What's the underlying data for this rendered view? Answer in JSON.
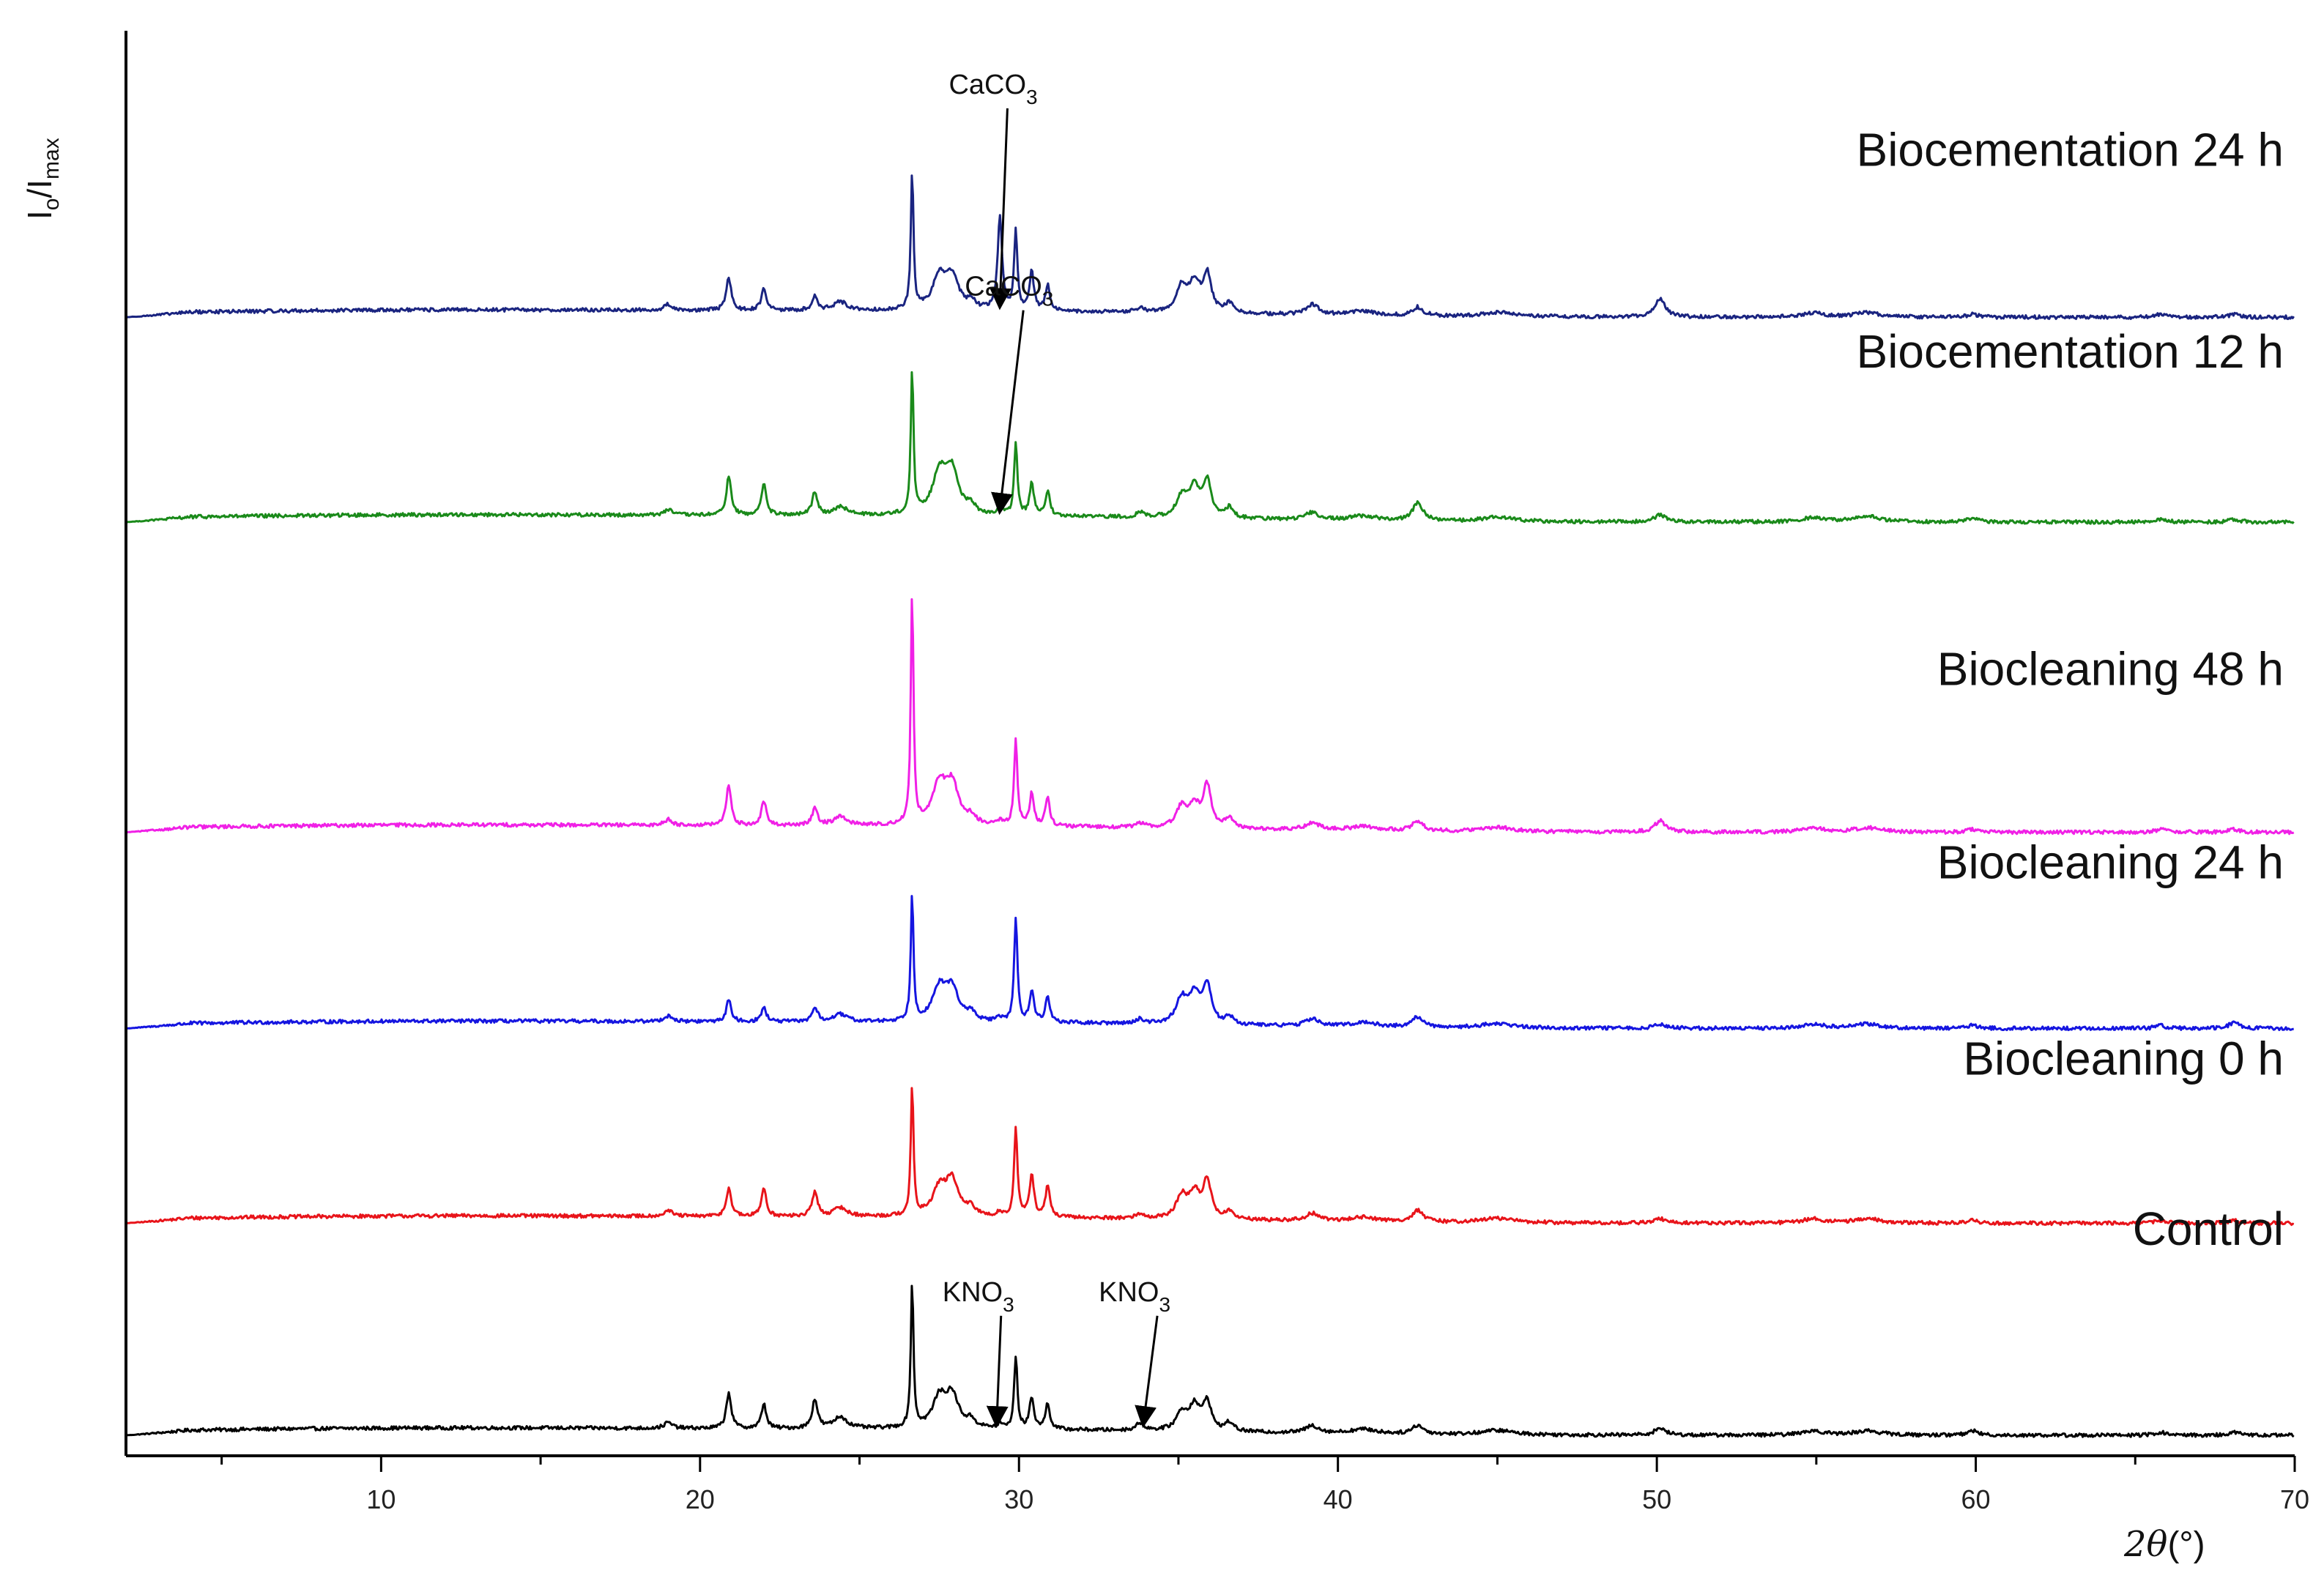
{
  "chart_data": {
    "type": "line",
    "ylabel_main": "I",
    "ylabel_sub1": "o",
    "ylabel_mid": "/I",
    "ylabel_sub2": "max",
    "xlabel_main": "2θ",
    "xlabel_unit": "(°)",
    "xlim": [
      2,
      70
    ],
    "xticks": [
      10,
      20,
      30,
      40,
      50,
      60,
      70
    ],
    "peaks": [
      {
        "x": 19.0,
        "w": 0.15
      },
      {
        "x": 20.9,
        "w": 0.09
      },
      {
        "x": 22.0,
        "w": 0.09
      },
      {
        "x": 23.6,
        "w": 0.1
      },
      {
        "x": 24.4,
        "w": 0.25
      },
      {
        "x": 26.65,
        "w": 0.05
      },
      {
        "x": 27.5,
        "w": 0.25
      },
      {
        "x": 27.9,
        "w": 0.25
      },
      {
        "x": 28.5,
        "w": 0.15
      },
      {
        "x": 29.4,
        "w": 0.08
      },
      {
        "x": 29.9,
        "w": 0.06
      },
      {
        "x": 30.4,
        "w": 0.08
      },
      {
        "x": 30.9,
        "w": 0.08
      },
      {
        "x": 33.8,
        "w": 0.15
      },
      {
        "x": 35.1,
        "w": 0.2
      },
      {
        "x": 35.5,
        "w": 0.2
      },
      {
        "x": 35.9,
        "w": 0.15
      },
      {
        "x": 36.6,
        "w": 0.15
      },
      {
        "x": 39.2,
        "w": 0.25
      },
      {
        "x": 40.8,
        "w": 0.5
      },
      {
        "x": 42.5,
        "w": 0.2
      },
      {
        "x": 45.0,
        "w": 0.6
      },
      {
        "x": 50.1,
        "w": 0.2
      },
      {
        "x": 54.9,
        "w": 0.4
      },
      {
        "x": 56.6,
        "w": 0.5
      },
      {
        "x": 59.9,
        "w": 0.2
      },
      {
        "x": 65.8,
        "w": 0.2
      },
      {
        "x": 68.1,
        "w": 0.2
      }
    ],
    "series": [
      {
        "name": "Control",
        "color": "#000000",
        "offset": 0.0,
        "intensities": [
          0.04,
          0.25,
          0.17,
          0.2,
          0.08,
          1.0,
          0.2,
          0.22,
          0.05,
          0.03,
          0.5,
          0.22,
          0.18,
          0.05,
          0.12,
          0.17,
          0.2,
          0.06,
          0.05,
          0.03,
          0.06,
          0.03,
          0.05,
          0.03,
          0.03,
          0.03,
          0.02,
          0.02
        ]
      },
      {
        "name": "Biocleaning 0 h",
        "color": "#e8141a",
        "offset": 1.47,
        "intensities": [
          0.04,
          0.2,
          0.2,
          0.17,
          0.06,
          0.9,
          0.18,
          0.24,
          0.05,
          0.03,
          0.62,
          0.3,
          0.22,
          0.03,
          0.15,
          0.17,
          0.26,
          0.05,
          0.05,
          0.03,
          0.08,
          0.03,
          0.03,
          0.03,
          0.03,
          0.02,
          0.02,
          0.02
        ]
      },
      {
        "name": "Biocleaning 24 h",
        "color": "#1515e0",
        "offset": 2.82,
        "intensities": [
          0.04,
          0.15,
          0.1,
          0.1,
          0.05,
          0.88,
          0.22,
          0.22,
          0.05,
          0.03,
          0.72,
          0.22,
          0.18,
          0.03,
          0.17,
          0.2,
          0.27,
          0.05,
          0.05,
          0.03,
          0.07,
          0.03,
          0.03,
          0.03,
          0.03,
          0.02,
          0.02,
          0.04
        ]
      },
      {
        "name": "Biocleaning 48 h",
        "color": "#f020e6",
        "offset": 4.18,
        "intensities": [
          0.04,
          0.28,
          0.17,
          0.12,
          0.06,
          1.6,
          0.27,
          0.27,
          0.05,
          0.03,
          0.6,
          0.22,
          0.2,
          0.03,
          0.14,
          0.14,
          0.29,
          0.07,
          0.05,
          0.03,
          0.07,
          0.03,
          0.08,
          0.03,
          0.03,
          0.02,
          0.02,
          0.02
        ]
      },
      {
        "name": "Biocementation 12 h",
        "color": "#1a8a1a",
        "offset": 6.33,
        "intensities": [
          0.04,
          0.27,
          0.22,
          0.16,
          0.06,
          1.0,
          0.28,
          0.3,
          0.05,
          0.06,
          0.5,
          0.22,
          0.17,
          0.03,
          0.14,
          0.2,
          0.24,
          0.07,
          0.05,
          0.03,
          0.12,
          0.03,
          0.05,
          0.03,
          0.04,
          0.03,
          0.02,
          0.02
        ]
      },
      {
        "name": "Biocementation 24 h",
        "color": "#1a2480",
        "offset": 7.75,
        "intensities": [
          0.04,
          0.23,
          0.16,
          0.1,
          0.06,
          0.95,
          0.22,
          0.22,
          0.05,
          0.66,
          0.55,
          0.27,
          0.18,
          0.03,
          0.17,
          0.2,
          0.26,
          0.07,
          0.07,
          0.03,
          0.06,
          0.03,
          0.13,
          0.03,
          0.03,
          0.02,
          0.02,
          0.02
        ]
      }
    ],
    "annotations": [
      {
        "text": "CaCO",
        "sub": "3",
        "series": "Biocementation 24 h",
        "x": 29.4,
        "label_x": 27.8,
        "label_y": 9.3
      },
      {
        "text": "CaCO",
        "sub": "3",
        "series": "Biocementation 12 h",
        "x": 29.4,
        "label_x": 28.3,
        "label_y": 7.9
      },
      {
        "text": "KNO",
        "sub": "3",
        "series": "Control",
        "x": 29.3,
        "label_x": 27.6,
        "label_y": 0.93
      },
      {
        "text": "KNO",
        "sub": "3",
        "series": "Control",
        "x": 33.9,
        "label_x": 32.5,
        "label_y": 0.93
      }
    ]
  }
}
